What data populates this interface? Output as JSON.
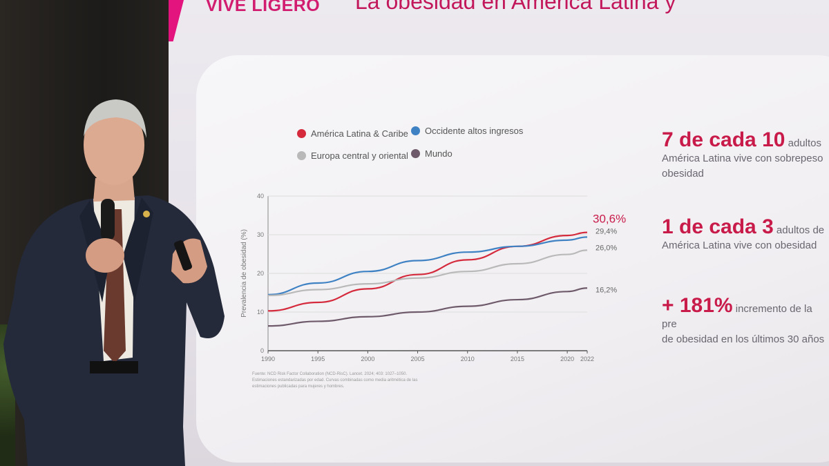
{
  "slide": {
    "brand": "VIVE LIGERO",
    "title": "La obesidad en América Latina y"
  },
  "legend": [
    {
      "label": "América Latina & Caribe",
      "color": "#d42a3c"
    },
    {
      "label": "Occidente altos ingresos",
      "color": "#3f82c4"
    },
    {
      "label": "Europa central y oriental",
      "color": "#b9b9b9"
    },
    {
      "label": "Mundo",
      "color": "#6e5a6a"
    }
  ],
  "chart_data": {
    "type": "line",
    "ylabel": "Prevalencia de obesidad (%)",
    "ylim": [
      0,
      40
    ],
    "yticks": [
      "0",
      "10",
      "20",
      "30",
      "40"
    ],
    "xlim": [
      1990,
      2022
    ],
    "xticks": [
      "1990",
      "1995",
      "2000",
      "2005",
      "2010",
      "2015",
      "2020",
      "2022"
    ],
    "series": [
      {
        "name": "América Latina & Caribe",
        "color": "#d42a3c",
        "x": [
          1990,
          1995,
          2000,
          2005,
          2010,
          2015,
          2020,
          2022
        ],
        "y": [
          10.3,
          12.5,
          16.0,
          19.7,
          23.5,
          27.0,
          29.8,
          30.6
        ],
        "end_label": "30,6%"
      },
      {
        "name": "Occidente altos ingresos",
        "color": "#3f82c4",
        "x": [
          1990,
          1995,
          2000,
          2005,
          2010,
          2015,
          2020,
          2022
        ],
        "y": [
          14.5,
          17.5,
          20.5,
          23.3,
          25.5,
          27.0,
          28.6,
          29.4
        ],
        "end_label": "29,4%"
      },
      {
        "name": "Europa central y oriental",
        "color": "#b9b9b9",
        "x": [
          1990,
          1995,
          2000,
          2005,
          2010,
          2015,
          2020,
          2022
        ],
        "y": [
          14.3,
          15.8,
          17.3,
          18.8,
          20.5,
          22.5,
          24.9,
          26.0
        ],
        "end_label": "26,0%"
      },
      {
        "name": "Mundo",
        "color": "#6e5a6a",
        "x": [
          1990,
          1995,
          2000,
          2005,
          2010,
          2015,
          2020,
          2022
        ],
        "y": [
          6.4,
          7.6,
          8.8,
          10.0,
          11.5,
          13.2,
          15.3,
          16.2
        ],
        "end_label": "16,2%"
      }
    ]
  },
  "source": "Fuente: NCD Risk Factor Collaboration (NCD-RisC). Lancet. 2024; 403: 1027–1050. Estimaciones estandarizadas por edad. Curvas combinadas como media aritmética de las estimaciones publicadas para mujeres y hombres.",
  "stats": [
    {
      "big": "7 de cada 10",
      "rest": " adultos",
      "line2": "América Latina vive con sobrepeso",
      "line3": "obesidad"
    },
    {
      "big": "1 de cada 3",
      "rest": " adultos de",
      "line2": "América Latina vive con obesidad",
      "line3": ""
    },
    {
      "big": "+ 181%",
      "rest": " incremento de la pre",
      "line2": "de obesidad en los últimos 30 años",
      "line3": ""
    }
  ],
  "colors": {
    "accent": "#c81b4a",
    "brand": "#e3147e"
  }
}
